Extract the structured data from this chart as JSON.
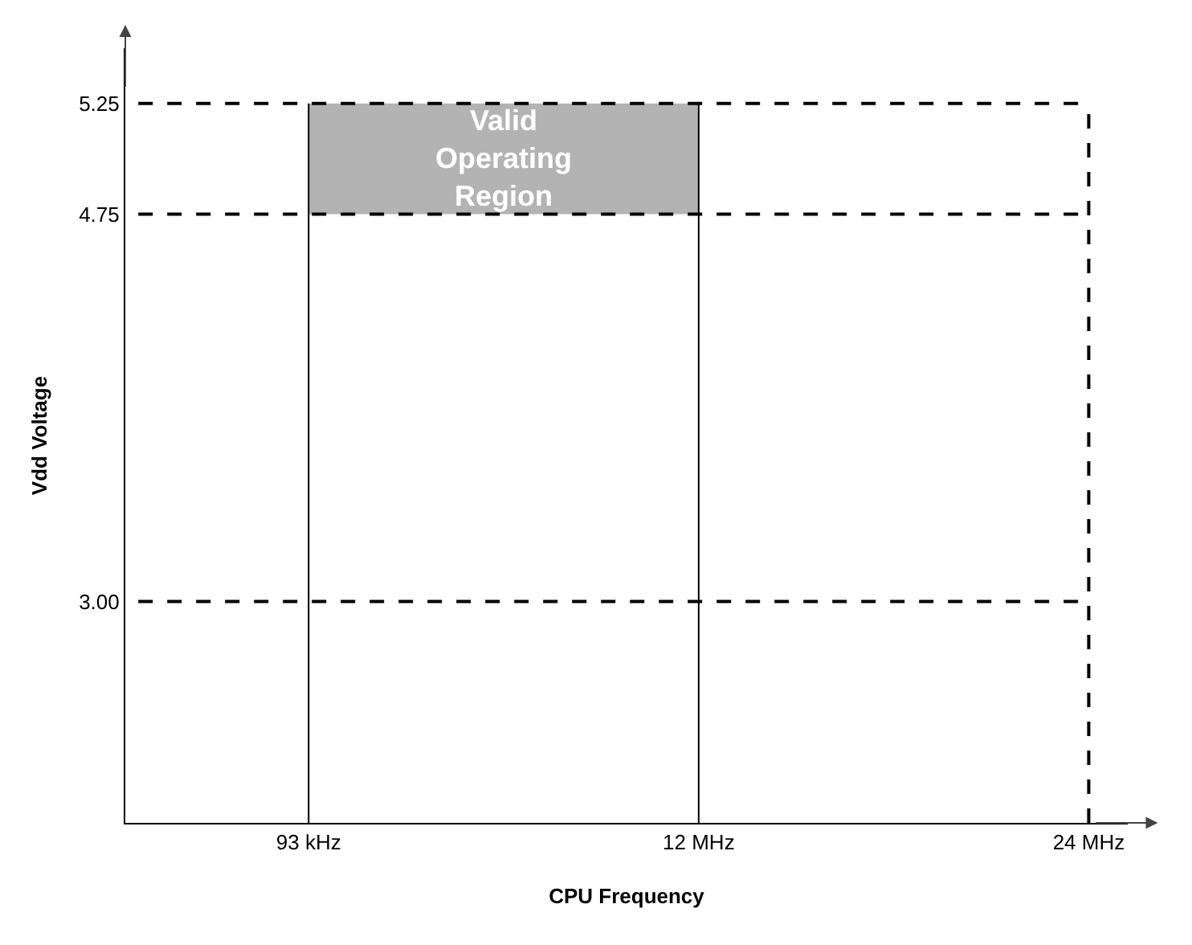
{
  "chart_data": {
    "type": "line",
    "xlabel": "CPU Frequency",
    "ylabel": "Vdd Voltage",
    "categories": [
      "93 kHz",
      "12 MHz",
      "24 MHz"
    ],
    "ylim": [
      2,
      5.5
    ],
    "yticks": [
      {
        "value": 3,
        "label": "3.00"
      },
      {
        "value": 4.75,
        "label": "4.75"
      },
      {
        "value": 5.25,
        "label": "5.25"
      }
    ],
    "ref_lines": [
      {
        "axis": "y",
        "value": 3,
        "line_style": "dashed",
        "color": "#000000"
      },
      {
        "axis": "y",
        "value": 4.75,
        "line_style": "dashed",
        "color": "#000000"
      },
      {
        "axis": "y",
        "value": 5.25,
        "line_style": "dashed",
        "color": "#000000"
      },
      {
        "axis": "x",
        "value": "93 kHz",
        "line_style": "solid",
        "color": "#000000"
      },
      {
        "axis": "x",
        "value": "12 MHz",
        "line_style": "solid",
        "color": "#000000"
      },
      {
        "axis": "x",
        "value": "24 MHz",
        "line_style": "dashed",
        "color": "#000000"
      }
    ],
    "bands": [
      {
        "axis": "y",
        "from": 4.75,
        "to": 5.25,
        "label": "Valid Operating Region",
        "color": "#b3b3b3"
      }
    ]
  }
}
